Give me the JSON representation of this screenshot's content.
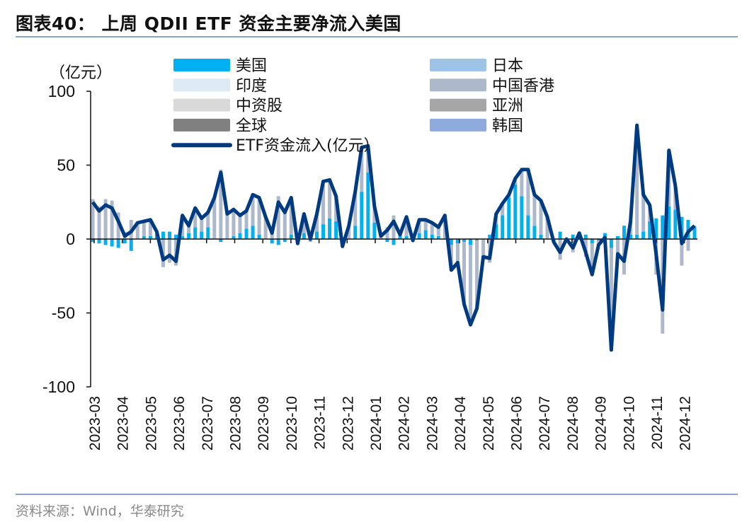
{
  "title": "图表40： 上周 QDII ETF 资金主要净流入美国",
  "source": "资料来源：Wind，华泰研究",
  "chart_data": {
    "type": "bar",
    "title": "上周 QDII ETF 资金主要净流入美国",
    "ylabel": "（亿元）",
    "ylim": [
      -100,
      100
    ],
    "yticks": [
      "100",
      "50",
      "0",
      "-50",
      "-100"
    ],
    "ytick_values": [
      100,
      50,
      0,
      -50,
      -100
    ],
    "x_frequency": "weekly",
    "month_labels": [
      "2023-03",
      "2023-04",
      "2023-05",
      "2023-06",
      "2023-07",
      "2023-08",
      "2023-09",
      "2023-10",
      "2023-11",
      "2023-12",
      "2024-01",
      "2024-02",
      "2024-03",
      "2024-04",
      "2024-05",
      "2024-06",
      "2024-07",
      "2024-08",
      "2024-09",
      "2024-10",
      "2024-11",
      "2024-12"
    ],
    "legend_placement": "top",
    "colors": {
      "美国": "#00b0f0",
      "日本": "#9dc3e6",
      "印度": "#deebf7",
      "中国香港": "#adb9ca",
      "中资股": "#d9d9d9",
      "亚洲": "#a6a6a6",
      "全球": "#808080",
      "韩国": "#8faadc",
      "line": "#003a80"
    },
    "legend": [
      {
        "name": "美国",
        "key": "美国",
        "kind": "bar"
      },
      {
        "name": "日本",
        "key": "日本",
        "kind": "bar"
      },
      {
        "name": "印度",
        "key": "印度",
        "kind": "bar"
      },
      {
        "name": "中国香港",
        "key": "中国香港",
        "kind": "bar"
      },
      {
        "name": "中资股",
        "key": "中资股",
        "kind": "bar"
      },
      {
        "name": "亚洲",
        "key": "亚洲",
        "kind": "bar"
      },
      {
        "name": "全球",
        "key": "全球",
        "kind": "bar"
      },
      {
        "name": "韩国",
        "key": "韩国",
        "kind": "bar"
      },
      {
        "name": "ETF资金流入(亿元）",
        "key": "line",
        "kind": "line"
      }
    ],
    "series": [
      {
        "name": "美国",
        "values": [
          -2,
          -3,
          -4,
          -5,
          -6,
          -3,
          -8,
          0,
          2,
          2,
          3,
          5,
          5,
          3,
          2,
          4,
          8,
          5,
          8,
          0,
          -2,
          0,
          2,
          4,
          7,
          9,
          3,
          0,
          -3,
          -4,
          -2,
          3,
          -2,
          4,
          2,
          5,
          10,
          14,
          12,
          0,
          0,
          9,
          32,
          45,
          11,
          0,
          -2,
          -4,
          3,
          2,
          0,
          4,
          6,
          3,
          2,
          0,
          -4,
          -3,
          -2,
          -4,
          -1,
          0,
          3,
          10,
          16,
          28,
          37,
          29,
          16,
          9,
          3,
          0,
          -2,
          5,
          0,
          3,
          4,
          3,
          -3,
          -1,
          4,
          -6,
          2,
          9,
          3,
          3,
          5,
          12,
          14,
          16,
          22,
          20,
          15,
          13,
          8
        ]
      },
      {
        "name": "中国香港",
        "values": [
          27,
          22,
          27,
          26,
          18,
          5,
          13,
          11,
          10,
          11,
          2,
          -19,
          -16,
          -18,
          14,
          5,
          13,
          9,
          10,
          28,
          47,
          17,
          18,
          12,
          12,
          21,
          25,
          15,
          7,
          29,
          20,
          25,
          -1,
          13,
          -2,
          12,
          29,
          26,
          17,
          -5,
          9,
          23,
          30,
          18,
          11,
          2,
          8,
          16,
          0,
          13,
          -1,
          9,
          7,
          8,
          6,
          16,
          -17,
          -13,
          -42,
          -54,
          -46,
          -12,
          -16,
          7,
          8,
          2,
          4,
          18,
          31,
          21,
          23,
          15,
          0,
          -14,
          0,
          -9,
          0,
          -12,
          -21,
          -3,
          -3,
          -69,
          -12,
          -24,
          9,
          74,
          25,
          11,
          -24,
          -64,
          38,
          16,
          -18,
          -8,
          1
        ]
      }
    ],
    "line": {
      "name": "ETF资金流入(亿元）",
      "values": [
        25,
        19,
        23,
        21,
        12,
        2,
        5,
        11,
        12,
        13,
        5,
        -14,
        -11,
        -15,
        16,
        9,
        21,
        14,
        18,
        28,
        45,
        17,
        20,
        16,
        19,
        30,
        28,
        15,
        4,
        25,
        18,
        28,
        -3,
        17,
        0,
        17,
        39,
        40,
        29,
        -5,
        9,
        32,
        62,
        63,
        22,
        2,
        6,
        12,
        3,
        15,
        -1,
        13,
        13,
        11,
        8,
        16,
        -21,
        -16,
        -44,
        -58,
        -47,
        -12,
        -13,
        17,
        24,
        30,
        41,
        47,
        47,
        30,
        26,
        15,
        -2,
        -9,
        0,
        -6,
        4,
        -9,
        -24,
        -4,
        1,
        -75,
        -10,
        -15,
        12,
        77,
        30,
        23,
        -10,
        -48,
        60,
        36,
        -3,
        5,
        9
      ]
    }
  }
}
